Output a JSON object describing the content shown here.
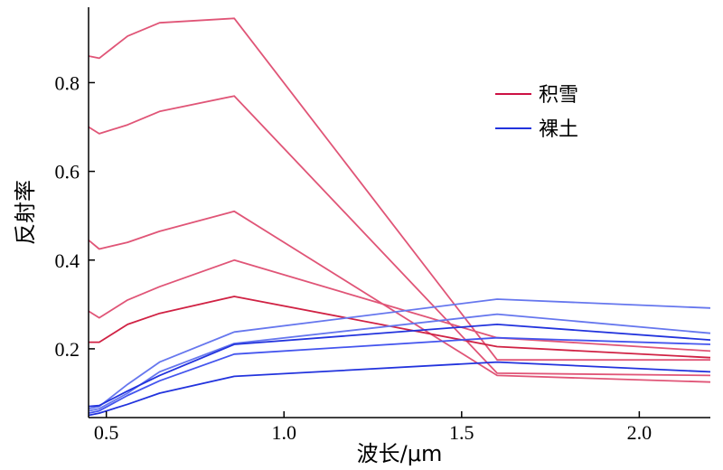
{
  "chart_data": {
    "type": "line",
    "xlabel": "波长/μm",
    "ylabel": "反射率",
    "xlim": [
      0.45,
      2.2
    ],
    "ylim": [
      0.045,
      0.97
    ],
    "xticks": [
      {
        "value": 0.5,
        "label": "0.5"
      },
      {
        "value": 1.0,
        "label": "1.0"
      },
      {
        "value": 1.5,
        "label": "1.5"
      },
      {
        "value": 2.0,
        "label": "2.0"
      }
    ],
    "yticks": [
      {
        "value": 0.2,
        "label": "0.2"
      },
      {
        "value": 0.4,
        "label": "0.4"
      },
      {
        "value": 0.6,
        "label": "0.6"
      },
      {
        "value": 0.8,
        "label": "0.8"
      }
    ],
    "grid": false,
    "legend_position": "top-right",
    "legend": [
      {
        "label": "积雪",
        "color": "#cc1144"
      },
      {
        "label": "裸土",
        "color": "#2233dd"
      }
    ],
    "series": [
      {
        "group": "积雪",
        "color": "#e05577",
        "points": [
          [
            0.45,
            0.86
          ],
          [
            0.48,
            0.855
          ],
          [
            0.56,
            0.905
          ],
          [
            0.65,
            0.935
          ],
          [
            0.86,
            0.945
          ],
          [
            1.6,
            0.175
          ],
          [
            2.2,
            0.175
          ]
        ]
      },
      {
        "group": "积雪",
        "color": "#e05577",
        "points": [
          [
            0.45,
            0.7
          ],
          [
            0.48,
            0.685
          ],
          [
            0.56,
            0.705
          ],
          [
            0.65,
            0.735
          ],
          [
            0.86,
            0.77
          ],
          [
            1.6,
            0.145
          ],
          [
            2.2,
            0.14
          ]
        ]
      },
      {
        "group": "积雪",
        "color": "#e05577",
        "points": [
          [
            0.45,
            0.445
          ],
          [
            0.48,
            0.425
          ],
          [
            0.56,
            0.44
          ],
          [
            0.65,
            0.465
          ],
          [
            0.86,
            0.51
          ],
          [
            1.6,
            0.14
          ],
          [
            2.2,
            0.125
          ]
        ]
      },
      {
        "group": "积雪",
        "color": "#e05577",
        "points": [
          [
            0.45,
            0.285
          ],
          [
            0.48,
            0.27
          ],
          [
            0.56,
            0.31
          ],
          [
            0.65,
            0.34
          ],
          [
            0.86,
            0.4
          ],
          [
            1.6,
            0.225
          ],
          [
            2.2,
            0.195
          ]
        ]
      },
      {
        "group": "积雪",
        "color": "#d02244",
        "points": [
          [
            0.45,
            0.215
          ],
          [
            0.48,
            0.215
          ],
          [
            0.56,
            0.255
          ],
          [
            0.65,
            0.28
          ],
          [
            0.86,
            0.318
          ],
          [
            1.6,
            0.205
          ],
          [
            2.2,
            0.18
          ]
        ]
      },
      {
        "group": "裸土",
        "color": "#6677ee",
        "points": [
          [
            0.45,
            0.065
          ],
          [
            0.48,
            0.07
          ],
          [
            0.56,
            0.12
          ],
          [
            0.65,
            0.17
          ],
          [
            0.86,
            0.238
          ],
          [
            1.6,
            0.312
          ],
          [
            2.2,
            0.292
          ]
        ]
      },
      {
        "group": "裸土",
        "color": "#6677ee",
        "points": [
          [
            0.45,
            0.06
          ],
          [
            0.48,
            0.065
          ],
          [
            0.56,
            0.1
          ],
          [
            0.65,
            0.148
          ],
          [
            0.86,
            0.212
          ],
          [
            1.6,
            0.278
          ],
          [
            2.2,
            0.235
          ]
        ]
      },
      {
        "group": "裸土",
        "color": "#2233dd",
        "points": [
          [
            0.45,
            0.07
          ],
          [
            0.48,
            0.072
          ],
          [
            0.56,
            0.105
          ],
          [
            0.65,
            0.14
          ],
          [
            0.86,
            0.21
          ],
          [
            1.6,
            0.255
          ],
          [
            2.2,
            0.22
          ]
        ]
      },
      {
        "group": "裸土",
        "color": "#4455ee",
        "points": [
          [
            0.45,
            0.055
          ],
          [
            0.48,
            0.06
          ],
          [
            0.56,
            0.095
          ],
          [
            0.65,
            0.128
          ],
          [
            0.86,
            0.188
          ],
          [
            1.6,
            0.225
          ],
          [
            2.2,
            0.21
          ]
        ]
      },
      {
        "group": "裸土",
        "color": "#2233dd",
        "points": [
          [
            0.45,
            0.05
          ],
          [
            0.48,
            0.055
          ],
          [
            0.56,
            0.075
          ],
          [
            0.65,
            0.1
          ],
          [
            0.86,
            0.138
          ],
          [
            1.6,
            0.17
          ],
          [
            2.2,
            0.148
          ]
        ]
      }
    ]
  }
}
